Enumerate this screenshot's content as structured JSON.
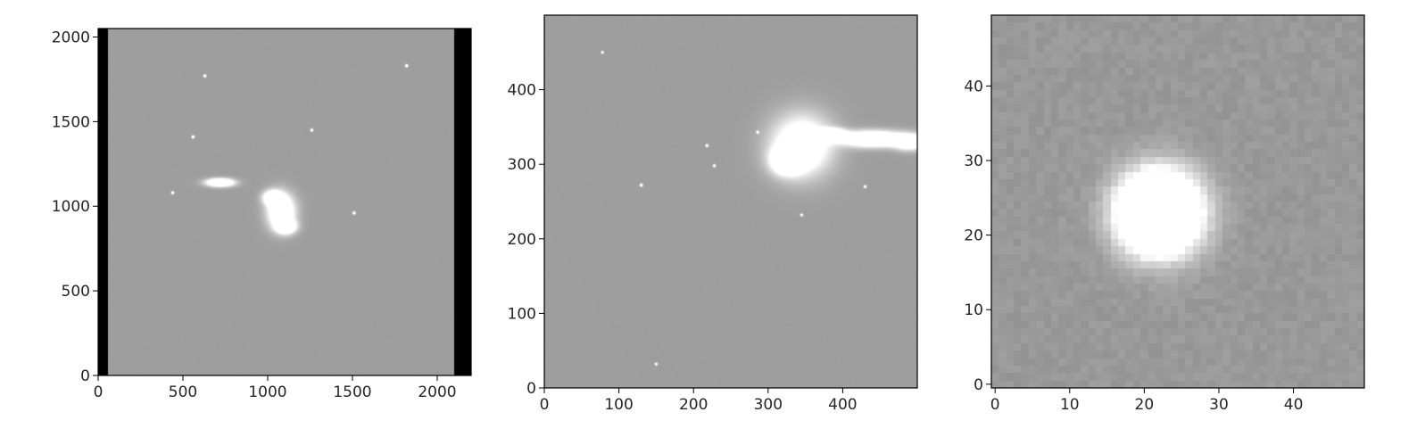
{
  "chart_data": [
    {
      "type": "heatmap",
      "colormap": "gray",
      "xlim": [
        0,
        2200
      ],
      "ylim": [
        0,
        2050
      ],
      "x_ticks": [
        0,
        500,
        1000,
        1500,
        2000
      ],
      "y_ticks": [
        0,
        500,
        1000,
        1500,
        2000
      ],
      "x_tick_labels": [
        "0",
        "500",
        "1000",
        "1500",
        "2000"
      ],
      "y_tick_labels": [
        "0",
        "500",
        "1000",
        "1500",
        "2000"
      ],
      "background_level": 0.62,
      "masked_region_level": 0.0,
      "image_extent": {
        "x": [
          0,
          2200
        ],
        "y": [
          0,
          2050
        ]
      },
      "valid_detector_area": {
        "x": [
          60,
          2100
        ],
        "y": [
          0,
          2050
        ]
      },
      "point_sources": [
        {
          "x": 630,
          "y": 1770,
          "peak": 1.0
        },
        {
          "x": 1820,
          "y": 1830,
          "peak": 1.0
        },
        {
          "x": 560,
          "y": 1410,
          "peak": 1.0
        },
        {
          "x": 1260,
          "y": 1450,
          "peak": 0.9
        },
        {
          "x": 1510,
          "y": 960,
          "peak": 1.0
        },
        {
          "x": 440,
          "y": 1080,
          "peak": 0.9
        }
      ],
      "extended_sources": [
        {
          "x": 720,
          "y": 1140,
          "sx": 55,
          "sy": 16,
          "peak": 1.0
        },
        {
          "x": 1080,
          "y": 970,
          "sx": 55,
          "sy": 70,
          "peak": 0.85
        },
        {
          "x": 1030,
          "y": 1050,
          "sx": 38,
          "sy": 28,
          "peak": 0.8
        },
        {
          "x": 1110,
          "y": 880,
          "sx": 40,
          "sy": 28,
          "peak": 0.75
        }
      ]
    },
    {
      "type": "heatmap",
      "colormap": "gray",
      "xlim": [
        0,
        500
      ],
      "ylim": [
        0,
        500
      ],
      "x_ticks": [
        0,
        100,
        200,
        300,
        400
      ],
      "y_ticks": [
        0,
        100,
        200,
        300,
        400
      ],
      "x_tick_labels": [
        "0",
        "100",
        "200",
        "300",
        "400"
      ],
      "y_tick_labels": [
        "0",
        "100",
        "200",
        "300",
        "400"
      ],
      "background_level": 0.62,
      "point_sources": [
        {
          "x": 130,
          "y": 272,
          "peak": 1.0
        },
        {
          "x": 218,
          "y": 325,
          "peak": 0.85
        },
        {
          "x": 228,
          "y": 298,
          "peak": 0.8
        },
        {
          "x": 430,
          "y": 270,
          "peak": 0.8
        },
        {
          "x": 286,
          "y": 343,
          "peak": 0.75
        },
        {
          "x": 345,
          "y": 232,
          "peak": 0.7
        },
        {
          "x": 150,
          "y": 32,
          "peak": 0.7
        },
        {
          "x": 78,
          "y": 450,
          "peak": 0.7
        }
      ],
      "extended_sources": [
        {
          "x": 385,
          "y": 340,
          "sx": 12,
          "sy": 5,
          "peak": 1.0
        },
        {
          "x": 440,
          "y": 334,
          "sx": 28,
          "sy": 7,
          "peak": 1.0
        },
        {
          "x": 490,
          "y": 330,
          "sx": 14,
          "sy": 7,
          "peak": 0.8
        },
        {
          "x": 345,
          "y": 325,
          "sx": 28,
          "sy": 28,
          "peak": 0.7
        },
        {
          "x": 325,
          "y": 305,
          "sx": 14,
          "sy": 12,
          "peak": 0.75
        }
      ]
    },
    {
      "type": "heatmap",
      "colormap": "gray",
      "xlim": [
        -0.5,
        49.5
      ],
      "ylim": [
        -0.5,
        49.5
      ],
      "x_ticks": [
        0,
        10,
        20,
        30,
        40
      ],
      "y_ticks": [
        0,
        10,
        20,
        30,
        40
      ],
      "x_tick_labels": [
        "0",
        "10",
        "20",
        "30",
        "40"
      ],
      "y_tick_labels": [
        "0",
        "10",
        "20",
        "30",
        "40"
      ],
      "grid_size": [
        50,
        50
      ],
      "background_level": 0.6,
      "noise_amplitude": 0.025,
      "point_sources": [
        {
          "x": 22,
          "y": 23,
          "sigma": 3.6,
          "peak": 1.6
        }
      ]
    }
  ]
}
